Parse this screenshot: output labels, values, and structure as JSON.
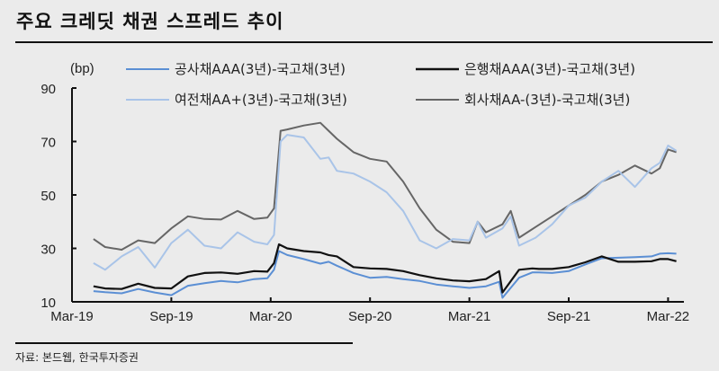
{
  "title": "주요 크레딧 채권 스프레드 추이",
  "source": "자료: 본드웹, 한국투자증권",
  "colors": {
    "background": "#ebebeb",
    "series_public": "#5b8fd4",
    "series_bank": "#111111",
    "series_card": "#a9c4e8",
    "series_corp": "#666666",
    "axis": "#111111"
  },
  "chart_data": {
    "type": "line",
    "title": "주요 크레딧 채권 스프레드 추이",
    "xlabel": "",
    "ylabel": "(bp)",
    "ylim": [
      10,
      90
    ],
    "yticks": [
      10,
      30,
      50,
      70,
      90
    ],
    "xticks": [
      "Mar-19",
      "Sep-19",
      "Mar-20",
      "Sep-20",
      "Mar-21",
      "Sep-21",
      "Mar-22"
    ],
    "grid": false,
    "legend_position": "top",
    "x_unit": "months since Mar-19",
    "series": [
      {
        "name": "공사채AAA(3년)-국고채(3년)",
        "color": "#5b8fd4",
        "width": 2,
        "x": [
          1.3,
          2,
          3,
          4,
          5,
          6,
          7,
          8,
          9,
          10,
          11,
          11.8,
          12.2,
          12.5,
          13,
          14,
          15,
          15.5,
          16,
          17,
          18,
          19,
          20,
          21,
          22,
          23,
          24,
          25,
          25.8,
          26,
          27,
          27.8,
          28.2,
          29,
          30,
          31,
          32,
          33,
          34,
          35,
          35.5,
          36,
          36.5
        ],
        "values": [
          14,
          13.6,
          13.2,
          14.8,
          13.5,
          12.5,
          16,
          17,
          17.8,
          17.3,
          18.5,
          18.8,
          22,
          29,
          27.5,
          26,
          24.3,
          25,
          23.5,
          20.8,
          19,
          19.3,
          18.5,
          17.8,
          16.5,
          15.8,
          15.2,
          15.8,
          17.5,
          11.5,
          19,
          21,
          21,
          20.8,
          21.5,
          24,
          26.3,
          26.5,
          26.7,
          27,
          28,
          28.2,
          28
        ]
      },
      {
        "name": "은행채AAA(3년)-국고채(3년)",
        "color": "#111111",
        "width": 2.2,
        "x": [
          1.3,
          2,
          3,
          4,
          5,
          6,
          7,
          8,
          9,
          10,
          11,
          11.8,
          12.2,
          12.5,
          13,
          14,
          15,
          15.5,
          16,
          17,
          18,
          19,
          20,
          21,
          22,
          23,
          24,
          25,
          25.8,
          26,
          27,
          27.8,
          28.2,
          29,
          30,
          31,
          32,
          33,
          34,
          35,
          35.5,
          36,
          36.5
        ],
        "values": [
          15.8,
          15,
          14.8,
          16.8,
          15.2,
          15,
          19.5,
          20.8,
          21,
          20.5,
          21.5,
          21.3,
          24.5,
          31.5,
          30,
          29,
          28.5,
          27.5,
          27,
          23,
          22.5,
          22.3,
          21.5,
          20,
          18.8,
          18,
          17.7,
          18.5,
          21.5,
          13.5,
          22,
          22.5,
          22.3,
          22.3,
          23,
          24.8,
          27,
          25,
          25,
          25.2,
          26,
          26,
          25.2
        ]
      },
      {
        "name": "여전채AA+(3년)-국고채(3년)",
        "color": "#a9c4e8",
        "width": 2,
        "x": [
          1.3,
          2,
          3,
          4,
          5,
          6,
          7,
          8,
          9,
          10,
          11,
          11.8,
          12.2,
          12.6,
          13,
          14,
          15,
          15.5,
          16,
          17,
          18,
          19,
          20,
          21,
          22,
          23,
          24,
          24.5,
          25,
          26,
          26.5,
          27,
          28,
          29,
          30,
          31,
          32,
          33,
          34,
          35,
          35.5,
          36,
          36.5
        ],
        "values": [
          24.5,
          22,
          27,
          30.5,
          22.8,
          32,
          37,
          31,
          30,
          36,
          32.5,
          31.5,
          35,
          70,
          72.5,
          71.5,
          63.5,
          64,
          59,
          58,
          55,
          51,
          44,
          33,
          30,
          33.5,
          33,
          40,
          34,
          37.5,
          42,
          31,
          34,
          39,
          46,
          49,
          55,
          59,
          53,
          60,
          62,
          68.5,
          66.5
        ]
      },
      {
        "name": "회사채AA-(3년)-국고채(3년)",
        "color": "#666666",
        "width": 2,
        "x": [
          1.3,
          2,
          3,
          4,
          5,
          6,
          7,
          8,
          9,
          10,
          11,
          11.8,
          12.2,
          12.6,
          13,
          14,
          15,
          15.5,
          16,
          17,
          18,
          19,
          20,
          21,
          22,
          23,
          24,
          24.5,
          25,
          26,
          26.5,
          27,
          28,
          29,
          30,
          31,
          32,
          33,
          34,
          35,
          35.5,
          36,
          36.5
        ],
        "values": [
          33.5,
          30.5,
          29.5,
          33,
          32,
          37.5,
          42,
          41,
          40.8,
          44,
          41,
          41.5,
          45,
          74,
          74.5,
          76,
          77,
          74,
          71,
          66,
          63.5,
          62.5,
          55,
          45,
          37,
          32.5,
          32,
          40,
          36,
          39,
          44,
          34,
          38,
          42,
          46,
          50,
          55,
          57.5,
          61,
          58,
          60,
          67,
          66
        ]
      }
    ]
  },
  "legend": [
    {
      "label": "공사채AAA(3년)-국고채(3년)",
      "color": "#5b8fd4"
    },
    {
      "label": "은행채AAA(3년)-국고채(3년)",
      "color": "#111111"
    },
    {
      "label": "여전채AA+(3년)-국고채(3년)",
      "color": "#a9c4e8"
    },
    {
      "label": "회사채AA-(3년)-국고채(3년)",
      "color": "#666666"
    }
  ]
}
